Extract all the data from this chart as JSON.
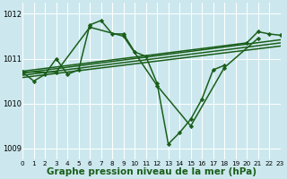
{
  "bg_color": "#cce8ee",
  "line_color": "#1a5e1a",
  "grid_color": "#ffffff",
  "xlabel": "Graphe pression niveau de la mer (hPa)",
  "xlabel_fontsize": 7.5,
  "xlim": [
    0,
    23
  ],
  "ylim": [
    1008.75,
    1012.25
  ],
  "yticks": [
    1009,
    1010,
    1011,
    1012
  ],
  "xticks": [
    0,
    1,
    2,
    3,
    4,
    5,
    6,
    7,
    8,
    9,
    10,
    11,
    12,
    13,
    14,
    15,
    16,
    17,
    18,
    19,
    20,
    21,
    22,
    23
  ],
  "series": [
    {
      "x": [
        0,
        1,
        2,
        3,
        4,
        5,
        6,
        7,
        8,
        9,
        10,
        11,
        12,
        13,
        14,
        15,
        16,
        17,
        18
      ],
      "y": [
        1010.7,
        1010.5,
        1010.65,
        1011.0,
        1010.65,
        1010.75,
        1011.75,
        1011.85,
        1011.55,
        1011.55,
        1011.15,
        1011.05,
        1010.45,
        1009.1,
        1009.35,
        1009.65,
        1010.1,
        1010.75,
        1010.85
      ],
      "marker": "D",
      "markersize": 2.2,
      "linewidth": 1.1
    },
    {
      "x": [
        0,
        3,
        6,
        9,
        12,
        15,
        18,
        21
      ],
      "y": [
        1010.7,
        1010.7,
        1011.7,
        1011.5,
        1010.4,
        1009.5,
        1010.8,
        1011.45
      ],
      "marker": "D",
      "markersize": 2.2,
      "linewidth": 1.1
    },
    {
      "x": [
        0,
        20,
        21,
        22,
        23
      ],
      "y": [
        1010.72,
        1011.35,
        1011.6,
        1011.55,
        1011.52
      ],
      "marker": "D",
      "markersize": 2.2,
      "linewidth": 1.1
    },
    {
      "x": [
        0,
        23
      ],
      "y": [
        1010.68,
        1011.42
      ],
      "marker": null,
      "markersize": 0,
      "linewidth": 1.1
    },
    {
      "x": [
        0,
        23
      ],
      "y": [
        1010.63,
        1011.35
      ],
      "marker": null,
      "markersize": 0,
      "linewidth": 1.1
    },
    {
      "x": [
        0,
        23
      ],
      "y": [
        1010.58,
        1011.28
      ],
      "marker": null,
      "markersize": 0,
      "linewidth": 1.1
    }
  ]
}
